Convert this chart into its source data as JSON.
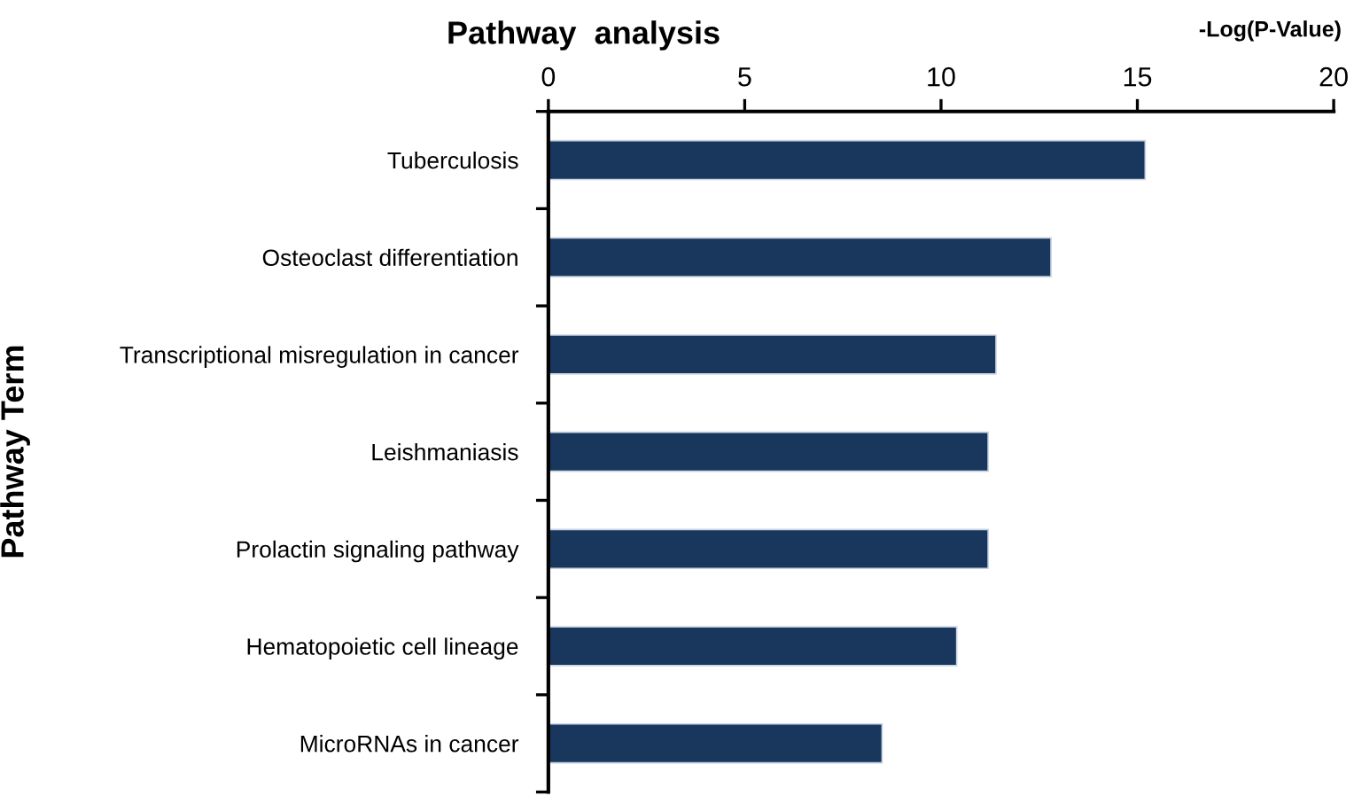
{
  "chart_data": {
    "type": "bar",
    "orientation": "horizontal",
    "title": "Pathway  analysis",
    "xlabel": "-Log(P-Value)",
    "ylabel": "Pathway Term",
    "categories": [
      "Tuberculosis",
      "Osteoclast differentiation",
      "Transcriptional misregulation in cancer",
      "Leishmaniasis",
      "Prolactin signaling pathway",
      "Hematopoietic cell lineage",
      "MicroRNAs in cancer"
    ],
    "values": [
      15.2,
      12.8,
      11.4,
      11.2,
      11.2,
      10.4,
      8.5
    ],
    "color": "#19375d",
    "xlim": [
      0,
      20
    ],
    "xticks": [
      0,
      5,
      10,
      15,
      20
    ],
    "grid": false
  }
}
